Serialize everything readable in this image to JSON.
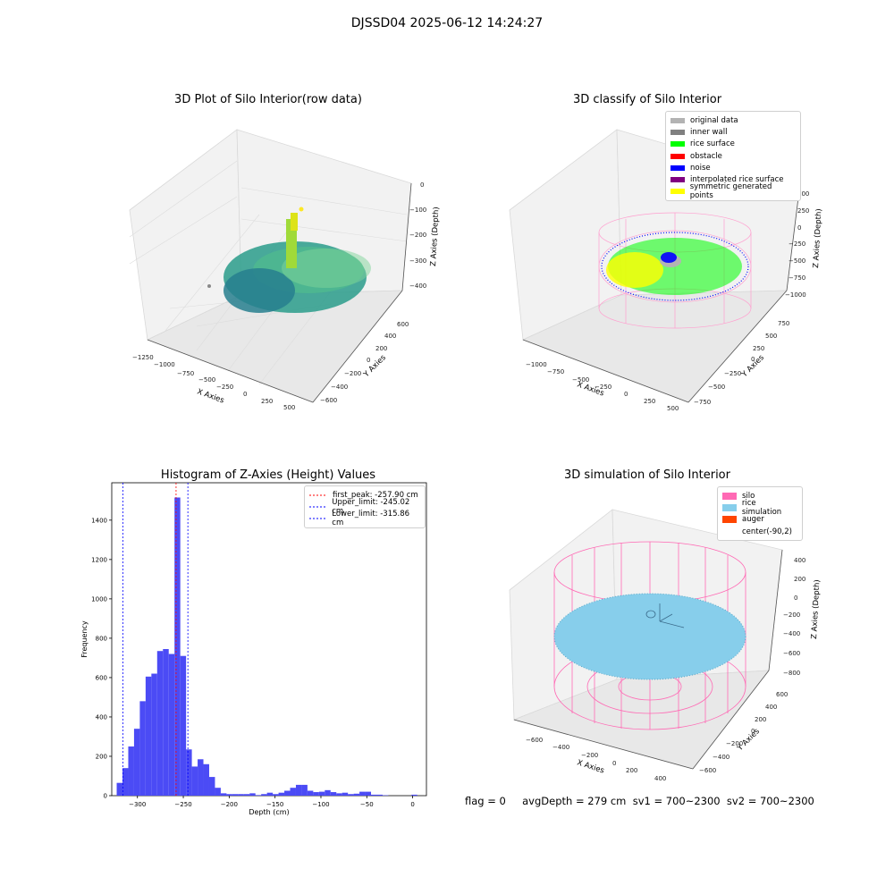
{
  "figure": {
    "suptitle": "DJSSD04 2025-06-12 14:24:27",
    "footer": "flag = 0     avgDepth = 279 cm  sv1 = 700~2300  sv2 = 700~2300"
  },
  "colors": {
    "histogram_bar": "#4b4bf5",
    "first_peak_line": "#ff0000",
    "limit_lines": "#0000ff",
    "silo": "#ff69b4",
    "rice_simulation": "#87ceeb",
    "auger": "#ff4500",
    "original_data": "#b3b3b3",
    "inner_wall": "#808080",
    "rice_surface": "#00ff00",
    "obstacle": "#ff0000",
    "noise": "#0000ff",
    "interpolated_rice_surface": "#800080",
    "symmetric_generated_points": "#ffff00"
  },
  "chart_data": [
    {
      "type": "scatter",
      "title": "3D Plot of Silo Interior(row data)",
      "xlabel": "X Axies",
      "ylabel": "Y Axies",
      "zlabel": "Z Axies (Depth)",
      "x_ticks": [
        "−1250",
        "−1000",
        "−750",
        "−500",
        "−250",
        "0",
        "250",
        "500"
      ],
      "y_ticks": [
        "−600",
        "−400",
        "−200",
        "0",
        "200",
        "400",
        "600"
      ],
      "z_ticks": [
        "−400",
        "−300",
        "−200",
        "−100",
        "0"
      ],
      "colormap": "viridis"
    },
    {
      "type": "scatter",
      "title": "3D classify of Silo Interior",
      "xlabel": "X Axies",
      "ylabel": "Y Axies",
      "zlabel": "Z Axies (Depth)",
      "x_ticks": [
        "−1000",
        "−750",
        "−500",
        "−250",
        "0",
        "250",
        "500"
      ],
      "y_ticks": [
        "−750",
        "−500",
        "−250",
        "0",
        "250",
        "500",
        "750"
      ],
      "z_ticks": [
        "−1000",
        "−750",
        "−500",
        "−250",
        "0",
        "250",
        "500"
      ],
      "legend": [
        {
          "label": "original data",
          "color": "#b3b3b3"
        },
        {
          "label": "inner wall",
          "color": "#808080"
        },
        {
          "label": "rice surface",
          "color": "#00ff00"
        },
        {
          "label": "obstacle",
          "color": "#ff0000"
        },
        {
          "label": "noise",
          "color": "#0000ff"
        },
        {
          "label": "interpolated rice surface",
          "color": "#800080"
        },
        {
          "label": "symmetric generated points",
          "color": "#ffff00"
        }
      ]
    },
    {
      "type": "bar",
      "title": "Histogram of Z-Axies (Height) Values",
      "xlabel": "Depth (cm)",
      "ylabel": "Frequency",
      "xlim": [
        -328,
        15
      ],
      "ylim": [
        0,
        1590
      ],
      "x_ticks": [
        -300,
        -250,
        -200,
        -150,
        -100,
        -50,
        0
      ],
      "y_ticks": [
        0,
        200,
        400,
        600,
        800,
        1000,
        1200,
        1400
      ],
      "bin_width": 6.3,
      "bins": [
        {
          "x": -322.6,
          "v": 65
        },
        {
          "x": -316.3,
          "v": 140
        },
        {
          "x": -310.0,
          "v": 250
        },
        {
          "x": -303.7,
          "v": 340
        },
        {
          "x": -297.4,
          "v": 480
        },
        {
          "x": -291.1,
          "v": 605
        },
        {
          "x": -284.8,
          "v": 620
        },
        {
          "x": -278.5,
          "v": 735
        },
        {
          "x": -272.2,
          "v": 745
        },
        {
          "x": -265.9,
          "v": 720
        },
        {
          "x": -259.6,
          "v": 1515
        },
        {
          "x": -253.3,
          "v": 710
        },
        {
          "x": -247.0,
          "v": 235
        },
        {
          "x": -240.7,
          "v": 148
        },
        {
          "x": -234.4,
          "v": 185
        },
        {
          "x": -228.1,
          "v": 160
        },
        {
          "x": -221.8,
          "v": 95
        },
        {
          "x": -215.5,
          "v": 40
        },
        {
          "x": -209.2,
          "v": 12
        },
        {
          "x": -202.9,
          "v": 8
        },
        {
          "x": -196.6,
          "v": 8
        },
        {
          "x": -190.3,
          "v": 8
        },
        {
          "x": -184.0,
          "v": 8
        },
        {
          "x": -177.7,
          "v": 12
        },
        {
          "x": -171.4,
          "v": 3
        },
        {
          "x": -165.1,
          "v": 8
        },
        {
          "x": -158.8,
          "v": 15
        },
        {
          "x": -152.5,
          "v": 8
        },
        {
          "x": -146.2,
          "v": 15
        },
        {
          "x": -139.9,
          "v": 25
        },
        {
          "x": -133.6,
          "v": 40
        },
        {
          "x": -127.3,
          "v": 55
        },
        {
          "x": -121.0,
          "v": 55
        },
        {
          "x": -114.7,
          "v": 25
        },
        {
          "x": -108.4,
          "v": 18
        },
        {
          "x": -102.1,
          "v": 20
        },
        {
          "x": -95.8,
          "v": 28
        },
        {
          "x": -89.5,
          "v": 18
        },
        {
          "x": -83.2,
          "v": 12
        },
        {
          "x": -76.9,
          "v": 15
        },
        {
          "x": -70.6,
          "v": 8
        },
        {
          "x": -64.3,
          "v": 10
        },
        {
          "x": -58.0,
          "v": 20
        },
        {
          "x": -51.7,
          "v": 20
        },
        {
          "x": -45.4,
          "v": 5
        },
        {
          "x": -39.1,
          "v": 5
        },
        {
          "x": -32.8,
          "v": 2
        },
        {
          "x": -1.3,
          "v": 5
        }
      ],
      "vlines": [
        {
          "label": "first_peak: -257.90 cm",
          "x": -257.9,
          "color": "#ff0000"
        },
        {
          "label": "Upper_limit: -245.02 cm",
          "x": -245.02,
          "color": "#0000ff"
        },
        {
          "label": "Lower_limit: -315.86 cm",
          "x": -315.86,
          "color": "#0000ff"
        }
      ]
    },
    {
      "type": "scatter",
      "title": "3D simulation of Silo Interior",
      "xlabel": "X Axies",
      "ylabel": "Y Axies",
      "zlabel": "Z Axies (Depth)",
      "x_ticks": [
        "−600",
        "−400",
        "−200",
        "0",
        "200",
        "400"
      ],
      "y_ticks": [
        "−600",
        "−400",
        "−200",
        "0",
        "200",
        "400",
        "600"
      ],
      "z_ticks": [
        "−800",
        "−600",
        "−400",
        "−200",
        "0",
        "200",
        "400"
      ],
      "legend": [
        {
          "label": "silo",
          "color": "#ff69b4"
        },
        {
          "label": "rice simulation",
          "color": "#87ceeb"
        },
        {
          "label": "auger",
          "color": "#ff4500"
        },
        {
          "label": "center(-90,2)",
          "color": ""
        }
      ]
    }
  ]
}
